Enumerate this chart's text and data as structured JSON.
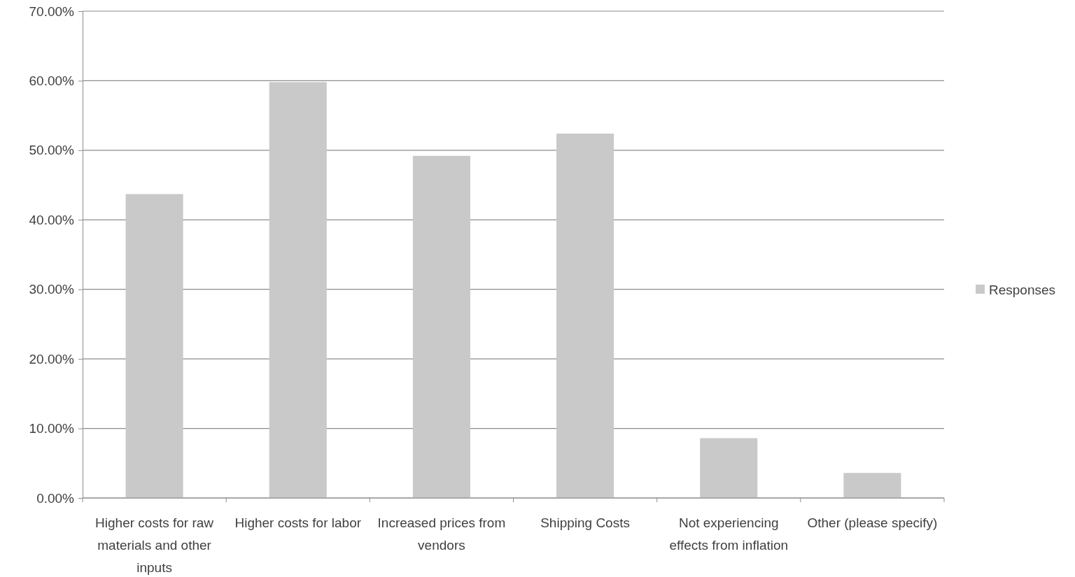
{
  "chart_data": {
    "type": "bar",
    "categories": [
      "Higher costs for raw materials and other inputs",
      "Higher costs for labor",
      "Increased prices from vendors",
      "Shipping Costs",
      "Not experiencing effects from inflation",
      "Other (please specify)"
    ],
    "series": [
      {
        "name": "Responses",
        "color": "#c9c9c9",
        "values": [
          43.7,
          59.8,
          49.2,
          52.4,
          8.6,
          3.6
        ]
      }
    ],
    "ylim": [
      0,
      70
    ],
    "yticks": [
      {
        "value": 0,
        "label": "0.00%"
      },
      {
        "value": 10,
        "label": "10.00%"
      },
      {
        "value": 20,
        "label": "20.00%"
      },
      {
        "value": 30,
        "label": "30.00%"
      },
      {
        "value": 40,
        "label": "40.00%"
      },
      {
        "value": 50,
        "label": "50.00%"
      },
      {
        "value": 60,
        "label": "60.00%"
      },
      {
        "value": 70,
        "label": "70.00%"
      }
    ],
    "grid": "y",
    "legend": "right"
  }
}
